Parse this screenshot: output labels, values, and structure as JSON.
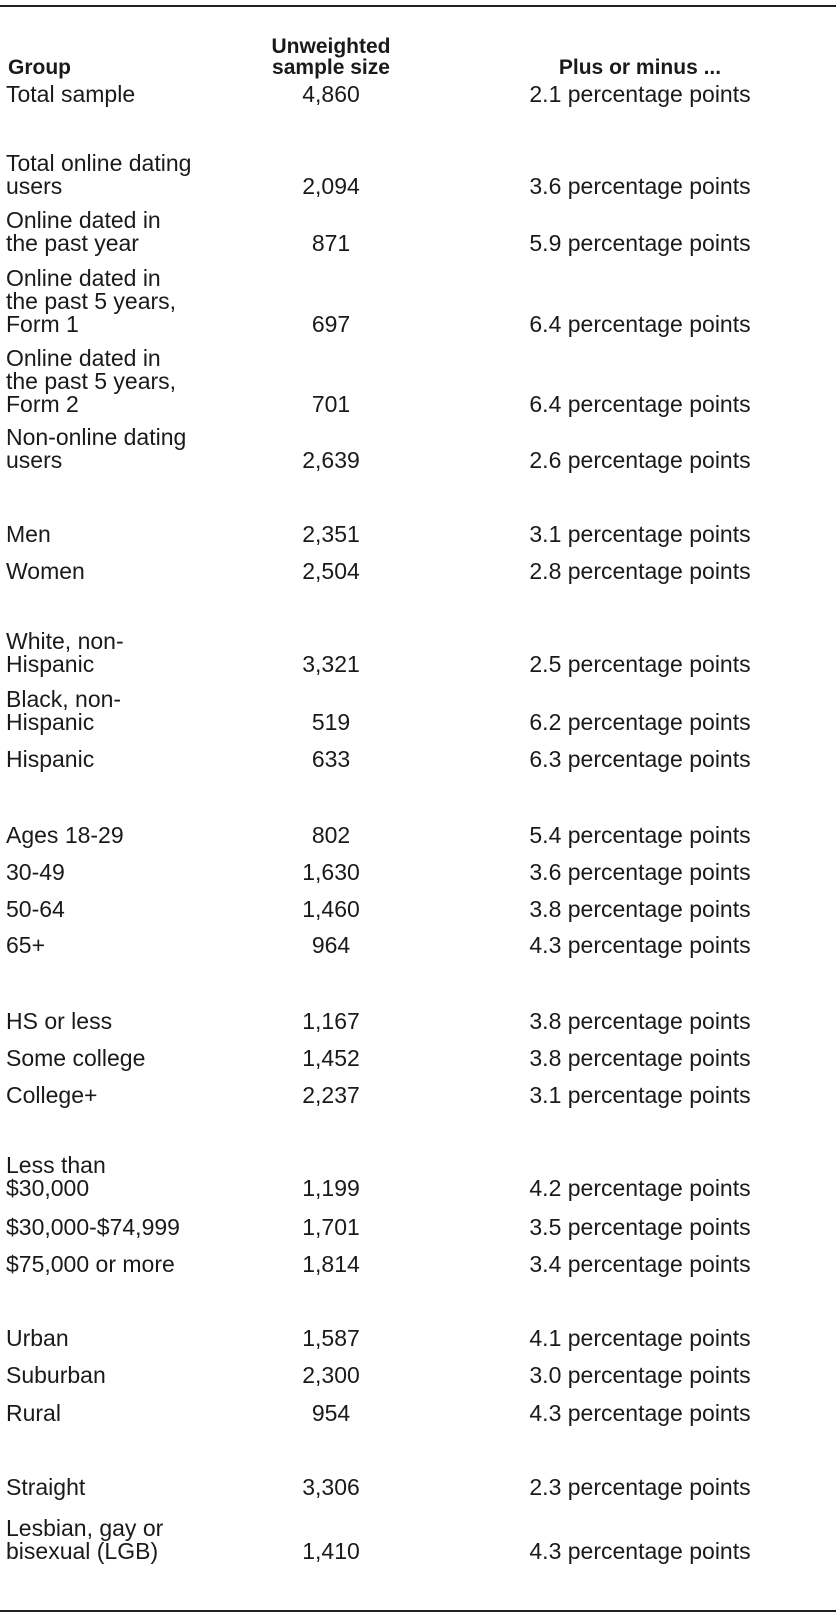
{
  "header": {
    "group": "Group",
    "sample_size": "Unweighted\nsample size",
    "moe": "Plus or minus ..."
  },
  "rows": [
    {
      "group": "Total sample",
      "size": "4,860",
      "moe": "2.1 percentage points"
    },
    {
      "group": "Total online dating\nusers",
      "size": "2,094",
      "moe": "3.6 percentage points"
    },
    {
      "group": "Online dated in\nthe past year",
      "size": "871",
      "moe": "5.9 percentage points"
    },
    {
      "group": "Online dated in\nthe past 5 years,\nForm 1",
      "size": "697",
      "moe": "6.4 percentage points"
    },
    {
      "group": "Online dated in\nthe past 5 years,\nForm 2",
      "size": "701",
      "moe": "6.4 percentage points"
    },
    {
      "group": "Non-online dating\nusers",
      "size": "2,639",
      "moe": "2.6 percentage points"
    },
    {
      "group": "Men",
      "size": "2,351",
      "moe": "3.1 percentage points"
    },
    {
      "group": "Women",
      "size": "2,504",
      "moe": "2.8 percentage points"
    },
    {
      "group": "White, non-\nHispanic",
      "size": "3,321",
      "moe": "2.5 percentage points"
    },
    {
      "group": "Black, non-\nHispanic",
      "size": "519",
      "moe": "6.2 percentage points"
    },
    {
      "group": "Hispanic",
      "size": "633",
      "moe": "6.3 percentage points"
    },
    {
      "group": "Ages 18-29",
      "size": "802",
      "moe": "5.4 percentage points"
    },
    {
      "group": "30-49",
      "size": "1,630",
      "moe": "3.6 percentage points"
    },
    {
      "group": "50-64",
      "size": "1,460",
      "moe": "3.8 percentage points"
    },
    {
      "group": "65+",
      "size": "964",
      "moe": "4.3 percentage points"
    },
    {
      "group": "HS or less",
      "size": "1,167",
      "moe": "3.8 percentage points"
    },
    {
      "group": "Some college",
      "size": "1,452",
      "moe": "3.8 percentage points"
    },
    {
      "group": "College+",
      "size": "2,237",
      "moe": "3.1 percentage points"
    },
    {
      "group": "Less than\n$30,000",
      "size": "1,199",
      "moe": "4.2 percentage points"
    },
    {
      "group": "$30,000-$74,999",
      "size": "1,701",
      "moe": "3.5 percentage points"
    },
    {
      "group": "$75,000 or more",
      "size": "1,814",
      "moe": "3.4 percentage points"
    },
    {
      "group": "Urban",
      "size": "1,587",
      "moe": "4.1 percentage points"
    },
    {
      "group": "Suburban",
      "size": "2,300",
      "moe": "3.0 percentage points"
    },
    {
      "group": "Rural",
      "size": "954",
      "moe": "4.3 percentage points"
    },
    {
      "group": "Straight",
      "size": "3,306",
      "moe": "2.3 percentage points"
    },
    {
      "group": "Lesbian, gay or\nbisexual (LGB)",
      "size": "1,410",
      "moe": "4.3 percentage points"
    }
  ]
}
